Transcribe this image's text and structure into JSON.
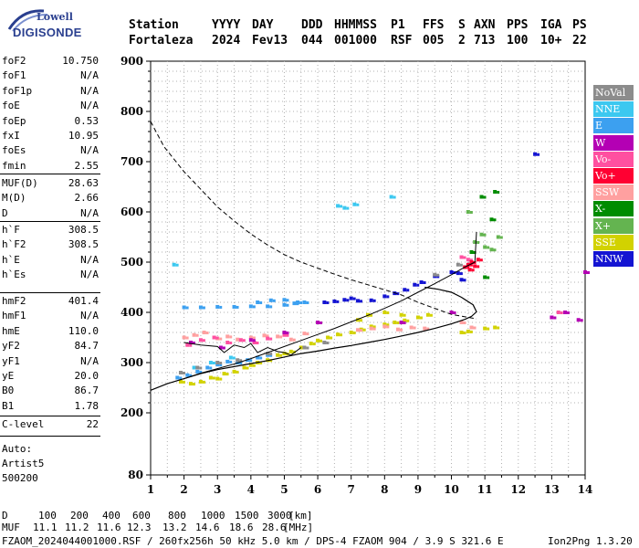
{
  "logo": {
    "brand_top": "Lowell",
    "brand_bottom": "DIGISONDE"
  },
  "header": {
    "labels": [
      "Station",
      "YYYY",
      "DAY",
      "DDD",
      "HHMMSS",
      "P1",
      "FFS",
      "S",
      "AXN",
      "PPS",
      "IGA",
      "PS"
    ],
    "values": [
      "Fortaleza",
      "2024",
      "Fev13",
      "044",
      "001000",
      "RSF",
      "005",
      "2",
      "713",
      "100",
      "10+",
      "22"
    ]
  },
  "params": {
    "group1": [
      {
        "k": "foF2",
        "v": "10.750"
      },
      {
        "k": "foF1",
        "v": "N/A"
      },
      {
        "k": "foF1p",
        "v": "N/A"
      },
      {
        "k": "foE",
        "v": "N/A"
      },
      {
        "k": "foEp",
        "v": "0.53"
      },
      {
        "k": "fxI",
        "v": "10.95"
      },
      {
        "k": "foEs",
        "v": "N/A"
      },
      {
        "k": "fmin",
        "v": "2.55"
      }
    ],
    "group2": [
      {
        "k": "MUF(D)",
        "v": "28.63"
      },
      {
        "k": "M(D)",
        "v": "2.66"
      },
      {
        "k": "D",
        "v": "N/A"
      }
    ],
    "group3": [
      {
        "k": "h`F",
        "v": "308.5"
      },
      {
        "k": "h`F2",
        "v": "308.5"
      },
      {
        "k": "h`E",
        "v": "N/A"
      },
      {
        "k": "h`Es",
        "v": "N/A"
      }
    ],
    "group4": [
      {
        "k": "hmF2",
        "v": "401.4"
      },
      {
        "k": "hmF1",
        "v": "N/A"
      },
      {
        "k": "hmE",
        "v": "110.0"
      },
      {
        "k": "yF2",
        "v": "84.7"
      },
      {
        "k": "yF1",
        "v": "N/A"
      },
      {
        "k": "yE",
        "v": "20.0"
      },
      {
        "k": "B0",
        "v": "86.7"
      },
      {
        "k": "B1",
        "v": "1.78"
      }
    ],
    "group5": [
      {
        "k": "C-level",
        "v": "22"
      }
    ]
  },
  "autoscale": [
    "Auto:",
    "Artist5",
    "500200"
  ],
  "legend": [
    {
      "label": "NoVal",
      "color": "#8c8c8c"
    },
    {
      "label": "NNE",
      "color": "#3cc8f0"
    },
    {
      "label": "E",
      "color": "#3ca0f0"
    },
    {
      "label": "W",
      "color": "#b400b4"
    },
    {
      "label": "Vo-",
      "color": "#ff50a0"
    },
    {
      "label": "Vo+",
      "color": "#ff0032"
    },
    {
      "label": "SSW",
      "color": "#ffa0a0"
    },
    {
      "label": "X-",
      "color": "#008c00"
    },
    {
      "label": "X+",
      "color": "#64b450"
    },
    {
      "label": "SSE",
      "color": "#d2d200"
    },
    {
      "label": "NNW",
      "color": "#1414d2"
    }
  ],
  "footer": {
    "d_label": "D",
    "d_values": [
      "100",
      "200",
      "400",
      "600",
      "800",
      "1000",
      "1500",
      "3000",
      "[km]"
    ],
    "muf_label": "MUF",
    "muf_values": [
      "11.1",
      "11.2",
      "11.6",
      "12.3",
      "13.2",
      "14.6",
      "18.6",
      "28.6",
      "[MHz]"
    ],
    "info": "FZAOM_2024044001000.RSF / 260fx256h 50 kHz 5.0 km / DPS-4 FZAOM 904 / 3.9 S 321.6 E",
    "version": "Ion2Png 1.3.20"
  },
  "chart_data": {
    "type": "scatter",
    "xlim": [
      1,
      14
    ],
    "ylim": [
      80,
      900
    ],
    "x_ticks": [
      1,
      2,
      3,
      4,
      5,
      6,
      7,
      8,
      9,
      10,
      11,
      12,
      13,
      14
    ],
    "y_ticks": [
      80,
      200,
      300,
      400,
      500,
      600,
      700,
      800,
      900
    ],
    "grid": "dotted",
    "legend_position": "right",
    "profile_solid": [
      [
        1.0,
        245
      ],
      [
        1.5,
        258
      ],
      [
        2.0,
        268
      ],
      [
        2.5,
        278
      ],
      [
        3.0,
        286
      ],
      [
        3.5,
        292
      ],
      [
        4.0,
        298
      ],
      [
        4.5,
        304
      ],
      [
        5.0,
        311
      ],
      [
        5.5,
        318
      ],
      [
        6.0,
        323
      ],
      [
        6.5,
        329
      ],
      [
        7.0,
        334
      ],
      [
        7.5,
        340
      ],
      [
        8.0,
        346
      ],
      [
        8.5,
        353
      ],
      [
        9.0,
        360
      ],
      [
        9.5,
        368
      ],
      [
        10.0,
        377
      ],
      [
        10.4,
        386
      ],
      [
        10.6,
        392
      ],
      [
        10.75,
        401
      ],
      [
        10.65,
        415
      ],
      [
        10.3,
        430
      ],
      [
        10.0,
        440
      ],
      [
        9.6,
        446
      ],
      [
        9.2,
        450
      ]
    ],
    "profile_dashed": [
      [
        1.0,
        780
      ],
      [
        1.4,
        730
      ],
      [
        2.0,
        680
      ],
      [
        2.5,
        645
      ],
      [
        3.0,
        610
      ],
      [
        3.5,
        582
      ],
      [
        4.0,
        556
      ],
      [
        4.5,
        534
      ],
      [
        5.0,
        515
      ],
      [
        5.5,
        500
      ],
      [
        6.0,
        488
      ],
      [
        6.5,
        476
      ],
      [
        7.0,
        465
      ],
      [
        7.5,
        455
      ],
      [
        8.0,
        445
      ],
      [
        8.5,
        435
      ],
      [
        9.0,
        420
      ],
      [
        9.5,
        408
      ],
      [
        10.0,
        396
      ],
      [
        10.5,
        390
      ],
      [
        10.75,
        387
      ]
    ],
    "trace_o": [
      [
        2.0,
        268
      ],
      [
        2.5,
        279
      ],
      [
        3.0,
        288
      ],
      [
        3.5,
        297
      ],
      [
        4.0,
        308
      ],
      [
        4.5,
        320
      ],
      [
        5.0,
        332
      ],
      [
        5.5,
        344
      ],
      [
        6.0,
        356
      ],
      [
        6.5,
        368
      ],
      [
        7.0,
        381
      ],
      [
        7.5,
        394
      ],
      [
        8.0,
        408
      ],
      [
        8.5,
        423
      ],
      [
        9.0,
        440
      ],
      [
        9.5,
        457
      ],
      [
        10.0,
        475
      ],
      [
        10.4,
        490
      ],
      [
        10.7,
        500
      ],
      [
        10.75,
        560
      ]
    ],
    "trace_x": [
      [
        2.0,
        340
      ],
      [
        2.5,
        335
      ],
      [
        3.0,
        332
      ],
      [
        3.2,
        320
      ],
      [
        3.5,
        335
      ],
      [
        3.8,
        330
      ],
      [
        4.0,
        338
      ],
      [
        4.2,
        320
      ],
      [
        4.5,
        330
      ],
      [
        4.8,
        322
      ],
      [
        5.0,
        320
      ],
      [
        5.2,
        315
      ],
      [
        5.5,
        330
      ]
    ],
    "scatter_groups": [
      {
        "name": "SSE",
        "color": "#d2d200",
        "points": [
          [
            1.9,
            262
          ],
          [
            2.2,
            258
          ],
          [
            2.5,
            262
          ],
          [
            2.8,
            270
          ],
          [
            3.0,
            268
          ],
          [
            3.2,
            278
          ],
          [
            3.5,
            282
          ],
          [
            3.8,
            290
          ],
          [
            4.0,
            295
          ],
          [
            4.2,
            300
          ],
          [
            4.5,
            305
          ],
          [
            4.8,
            315
          ],
          [
            5.0,
            318
          ],
          [
            5.2,
            322
          ],
          [
            5.5,
            330
          ],
          [
            5.8,
            338
          ],
          [
            6.0,
            344
          ],
          [
            6.3,
            350
          ],
          [
            6.6,
            356
          ],
          [
            7.0,
            360
          ],
          [
            7.3,
            366
          ],
          [
            7.6,
            372
          ],
          [
            8.0,
            376
          ],
          [
            8.3,
            380
          ],
          [
            8.6,
            384
          ],
          [
            9.0,
            390
          ],
          [
            9.3,
            395
          ],
          [
            10.3,
            360
          ],
          [
            10.5,
            362
          ],
          [
            11.0,
            368
          ],
          [
            11.3,
            370
          ],
          [
            7.2,
            385
          ],
          [
            7.5,
            395
          ],
          [
            8.0,
            400
          ],
          [
            8.5,
            395
          ]
        ]
      },
      {
        "name": "E",
        "color": "#3ca0f0",
        "points": [
          [
            1.8,
            270
          ],
          [
            2.1,
            275
          ],
          [
            2.4,
            282
          ],
          [
            2.7,
            290
          ],
          [
            3.0,
            296
          ],
          [
            3.3,
            302
          ],
          [
            3.6,
            300
          ],
          [
            3.9,
            305
          ],
          [
            4.2,
            310
          ],
          [
            4.5,
            315
          ],
          [
            2.0,
            410
          ],
          [
            2.5,
            410
          ],
          [
            3.0,
            411
          ],
          [
            3.5,
            411
          ],
          [
            4.0,
            412
          ],
          [
            4.5,
            412
          ],
          [
            5.0,
            415
          ],
          [
            5.3,
            418
          ],
          [
            5.6,
            420
          ],
          [
            4.2,
            420
          ],
          [
            4.6,
            424
          ],
          [
            5.0,
            425
          ],
          [
            5.4,
            420
          ]
        ]
      },
      {
        "name": "NNE",
        "color": "#3cc8f0",
        "points": [
          [
            6.6,
            612
          ],
          [
            6.8,
            608
          ],
          [
            7.1,
            615
          ],
          [
            1.7,
            495
          ],
          [
            8.2,
            630
          ],
          [
            2.3,
            290
          ],
          [
            2.8,
            300
          ],
          [
            3.4,
            310
          ]
        ]
      },
      {
        "name": "NNW",
        "color": "#1414d2",
        "points": [
          [
            6.2,
            420
          ],
          [
            6.5,
            422
          ],
          [
            6.8,
            425
          ],
          [
            7.0,
            428
          ],
          [
            7.2,
            423
          ],
          [
            7.6,
            424
          ],
          [
            8.0,
            432
          ],
          [
            8.3,
            438
          ],
          [
            8.6,
            445
          ],
          [
            8.9,
            455
          ],
          [
            9.1,
            460
          ],
          [
            9.5,
            472
          ],
          [
            10.0,
            480
          ],
          [
            10.2,
            478
          ],
          [
            12.5,
            715
          ],
          [
            10.3,
            465
          ]
        ]
      },
      {
        "name": "SSW",
        "color": "#ffa0a0",
        "points": [
          [
            2.0,
            350
          ],
          [
            2.3,
            355
          ],
          [
            2.6,
            360
          ],
          [
            3.0,
            348
          ],
          [
            3.3,
            352
          ],
          [
            3.6,
            346
          ],
          [
            4.0,
            350
          ],
          [
            4.4,
            354
          ],
          [
            4.8,
            352
          ],
          [
            5.2,
            346
          ],
          [
            5.6,
            358
          ],
          [
            7.2,
            365
          ],
          [
            7.6,
            368
          ],
          [
            8.0,
            372
          ],
          [
            8.4,
            366
          ],
          [
            8.8,
            370
          ],
          [
            9.2,
            368
          ],
          [
            10.3,
            380
          ],
          [
            10.6,
            370
          ]
        ]
      },
      {
        "name": "Vo-",
        "color": "#ff50a0",
        "points": [
          [
            2.1,
            335
          ],
          [
            2.5,
            345
          ],
          [
            2.9,
            350
          ],
          [
            3.3,
            340
          ],
          [
            3.7,
            345
          ],
          [
            4.1,
            340
          ],
          [
            4.5,
            348
          ],
          [
            5.0,
            355
          ],
          [
            10.3,
            510
          ],
          [
            10.5,
            505
          ],
          [
            13.2,
            400
          ]
        ]
      },
      {
        "name": "Vo+",
        "color": "#ff0032",
        "points": [
          [
            10.4,
            490
          ],
          [
            10.5,
            495
          ],
          [
            10.6,
            500
          ],
          [
            10.55,
            485
          ],
          [
            10.7,
            492
          ],
          [
            10.8,
            505
          ]
        ]
      },
      {
        "name": "W",
        "color": "#b400b4",
        "points": [
          [
            2.2,
            340
          ],
          [
            3.1,
            330
          ],
          [
            4.0,
            345
          ],
          [
            5.0,
            360
          ],
          [
            6.0,
            380
          ],
          [
            8.5,
            380
          ],
          [
            10.0,
            400
          ],
          [
            13.4,
            400
          ],
          [
            13.0,
            390
          ],
          [
            13.8,
            385
          ],
          [
            14.0,
            480
          ]
        ]
      },
      {
        "name": "X-",
        "color": "#008c00",
        "points": [
          [
            10.9,
            630
          ],
          [
            11.2,
            585
          ],
          [
            11.3,
            640
          ],
          [
            10.6,
            520
          ],
          [
            11.0,
            470
          ]
        ]
      },
      {
        "name": "X+",
        "color": "#64b450",
        "points": [
          [
            10.7,
            540
          ],
          [
            10.9,
            555
          ],
          [
            11.0,
            530
          ],
          [
            11.2,
            525
          ],
          [
            11.4,
            550
          ],
          [
            10.5,
            600
          ]
        ]
      },
      {
        "name": "NoVal",
        "color": "#8c8c8c",
        "points": [
          [
            1.9,
            280
          ],
          [
            2.4,
            290
          ],
          [
            3.0,
            300
          ],
          [
            3.6,
            305
          ],
          [
            4.5,
            318
          ],
          [
            5.6,
            330
          ],
          [
            6.2,
            340
          ],
          [
            9.5,
            475
          ],
          [
            10.2,
            495
          ]
        ]
      }
    ]
  }
}
